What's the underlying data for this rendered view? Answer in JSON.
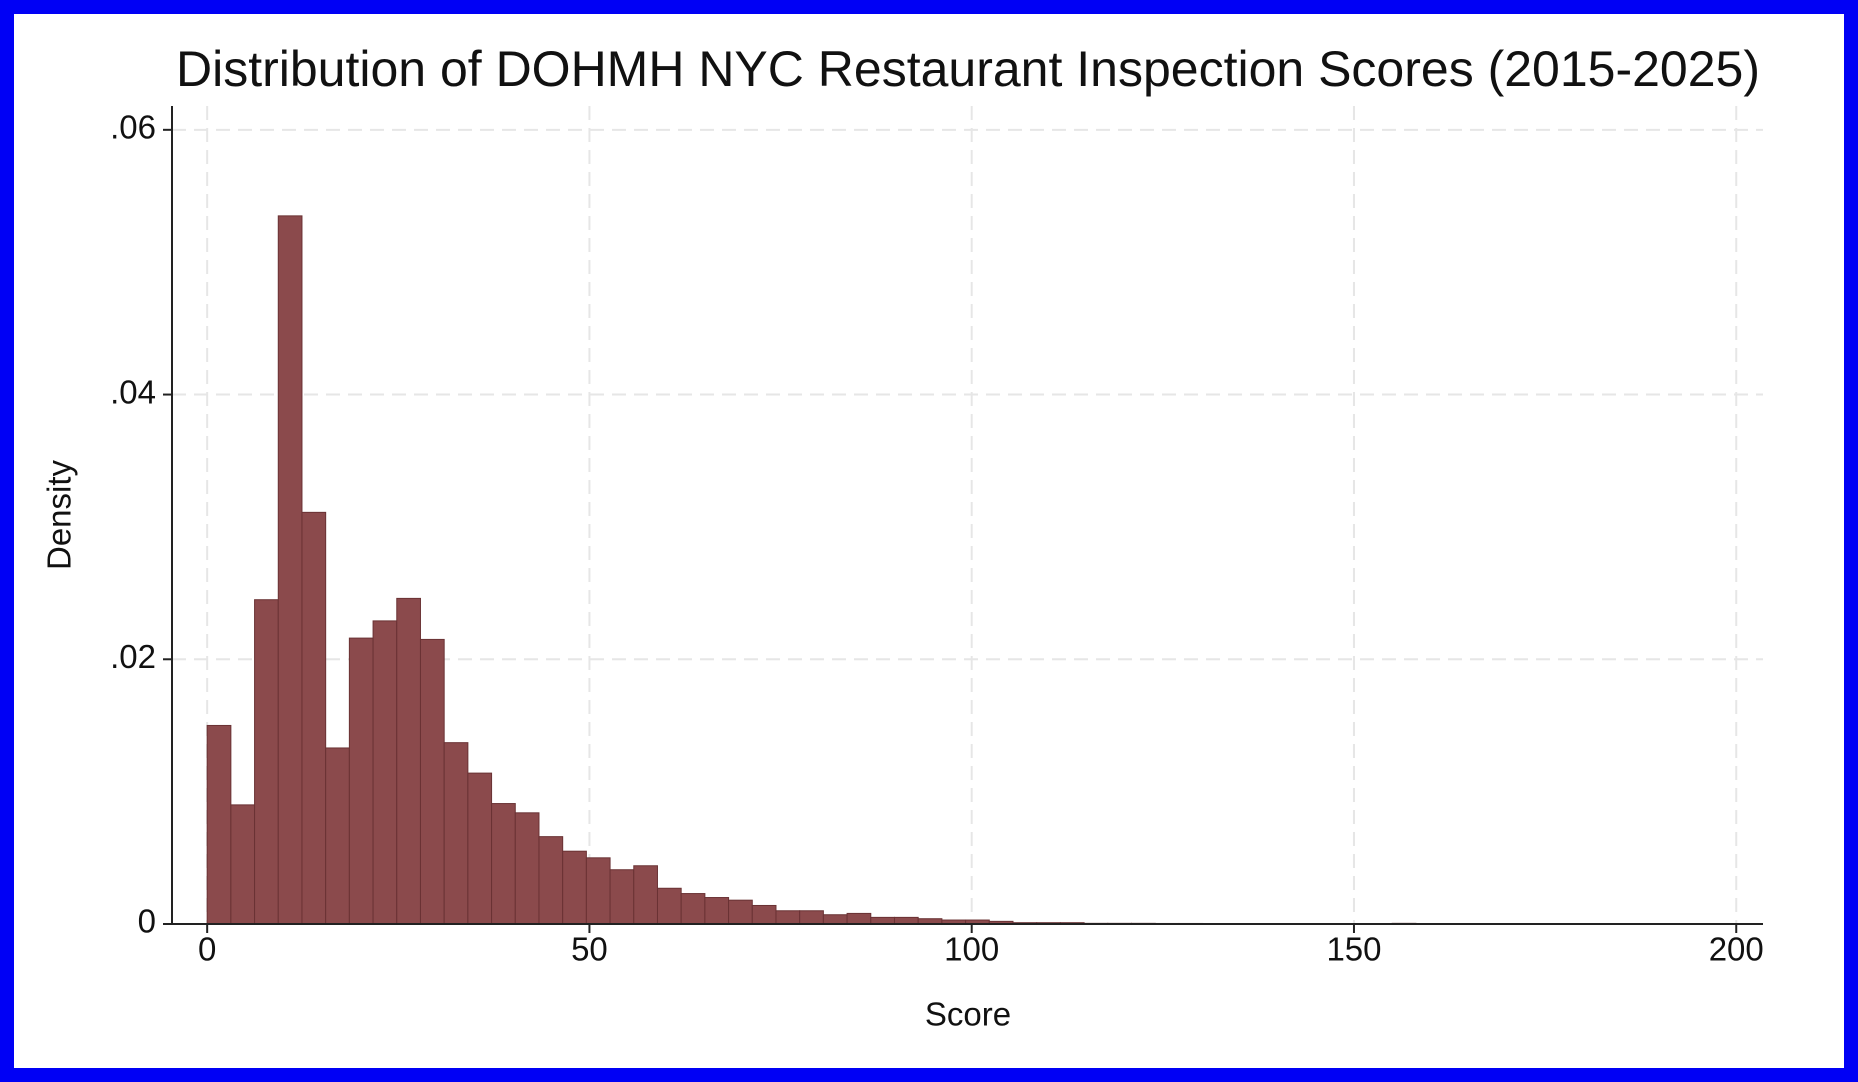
{
  "chart_data": {
    "type": "histogram",
    "title": "Distribution of DOHMH NYC Restaurant Inspection Scores (2015-2025)",
    "x_label": "Score",
    "y_label": "Density",
    "bins": [
      0,
      3.1,
      6.2,
      9.3,
      12.4,
      15.5,
      18.6,
      21.7,
      24.8,
      27.9,
      31,
      34.1,
      37.2,
      40.3,
      43.4,
      46.5,
      49.6,
      52.7,
      55.8,
      58.9,
      62,
      65.1,
      68.2,
      71.3,
      74.4,
      77.5,
      80.6,
      83.7,
      86.8,
      89.9,
      93,
      96.1,
      99.2,
      102.3,
      105.4,
      108.5,
      111.6,
      114.7,
      117.8,
      120.9,
      124,
      127.1,
      130.2,
      133.3,
      136.4,
      139.5,
      142.6,
      145.7,
      148.8,
      151.9,
      155,
      158.1,
      161.2,
      164.3,
      167.4,
      170.5
    ],
    "values": [
      0.015,
      0.009,
      0.0245,
      0.0535,
      0.0311,
      0.0133,
      0.0216,
      0.0229,
      0.0246,
      0.0215,
      0.0137,
      0.0114,
      0.0091,
      0.0084,
      0.0066,
      0.0055,
      0.005,
      0.0041,
      0.0044,
      0.0027,
      0.0023,
      0.002,
      0.0018,
      0.0014,
      0.001,
      0.001,
      0.0007,
      0.0008,
      0.0005,
      0.0005,
      0.0004,
      0.0003,
      0.0003,
      0.0002,
      0.0001,
      0.0001,
      0.0001,
      5e-05,
      5e-05,
      5e-05,
      4e-05,
      4e-05,
      3e-05,
      3e-05,
      3e-05,
      2e-05,
      2e-05,
      2e-05,
      2e-05,
      2e-05,
      5e-05,
      2e-05,
      1e-05,
      1e-05,
      3e-05
    ],
    "color": "#8b4a4c",
    "edge_color": "#6a3234",
    "xlim": [
      -4.6,
      203.5
    ],
    "xticks": [
      0,
      50,
      100,
      150,
      200
    ],
    "ylim": [
      0,
      0.0618
    ],
    "yticks": [
      0,
      {
        "value": 0.02,
        "label": ".02"
      },
      {
        "value": 0.04,
        "label": ".04"
      },
      {
        "value": 0.06,
        "label": ".06"
      }
    ],
    "grid": true
  }
}
